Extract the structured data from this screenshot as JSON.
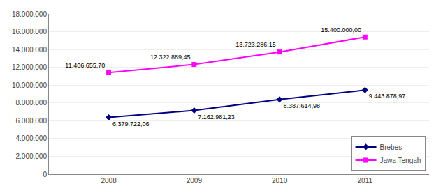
{
  "chart_data": {
    "type": "line",
    "x": [
      2008,
      2009,
      2010,
      2011
    ],
    "series": [
      {
        "name": "Brebes",
        "color": "#000080",
        "marker": "diamond",
        "values": [
          6379722.06,
          7162981.23,
          8387614.98,
          9443878.97
        ],
        "value_labels": [
          "6.379.722,06",
          "7.162.981,23",
          "8.387.614,98",
          "9.443.878,97"
        ]
      },
      {
        "name": "Jawa Tengah",
        "color": "#FF00FF",
        "marker": "square",
        "values": [
          11406655.7,
          12322889.45,
          13723286.15,
          15400000.0
        ],
        "value_labels": [
          "11.406.655,70",
          "12.322.889,45",
          "13.723.286,15",
          "15.400.000,00"
        ]
      }
    ],
    "xlim": [
      2007.3,
      2011.75
    ],
    "xticks": [
      2008,
      2009,
      2010,
      2011
    ],
    "ylim": [
      0,
      18000000
    ],
    "yticks": [
      0,
      {
        "value": 2000000,
        "label": "2.000.000"
      },
      {
        "value": 4000000,
        "label": "4.000.000"
      },
      {
        "value": 6000000,
        "label": "6.000.000"
      },
      {
        "value": 8000000,
        "label": "8.000.000"
      },
      {
        "value": 10000000,
        "label": "10.000.000"
      },
      {
        "value": 12000000,
        "label": "12.000.000"
      },
      {
        "value": 14000000,
        "label": "14.000.000"
      },
      {
        "value": 16000000,
        "label": "16.000.000"
      },
      {
        "value": 18000000,
        "label": "18.000.000"
      }
    ],
    "grid": true,
    "legend": "lower right",
    "data_labels": true
  }
}
